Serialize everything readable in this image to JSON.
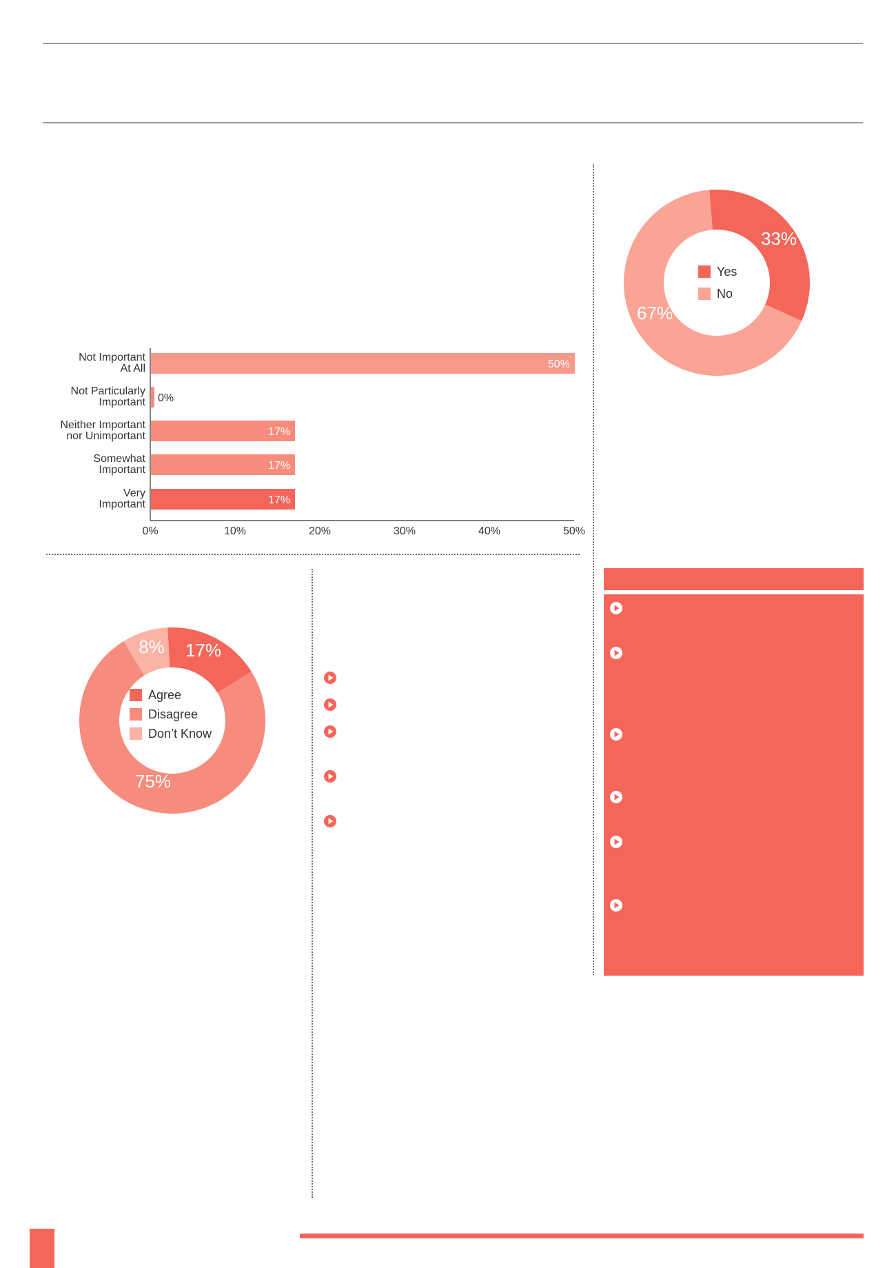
{
  "colors": {
    "accent": "#f4665a",
    "medium": "#f78b7c",
    "light": "#fbb3a6",
    "yes": "#f4665a",
    "no": "#f9a494",
    "bar_top": "#f9998a",
    "rule": "#9a9a9a"
  },
  "chart_data": [
    {
      "type": "bar",
      "orientation": "horizontal",
      "categories": [
        [
          "Not Important",
          "At All"
        ],
        [
          "Not Particularly",
          "Important"
        ],
        [
          "Neither Important",
          "nor Unimportant"
        ],
        [
          "Somewhat",
          "Important"
        ],
        [
          "Very",
          "Important"
        ]
      ],
      "values": [
        50,
        0,
        17,
        17,
        17
      ],
      "data_labels": [
        "50%",
        "0%",
        "17%",
        "17%",
        "17%"
      ],
      "xlim": [
        0,
        50
      ],
      "xticks": [
        "0%",
        "10%",
        "20%",
        "30%",
        "40%",
        "50%"
      ],
      "title": "",
      "xlabel": "",
      "ylabel": ""
    },
    {
      "type": "pie",
      "variant": "donut",
      "categories": [
        "Yes",
        "No"
      ],
      "values": [
        33,
        67
      ],
      "data_labels": [
        "33%",
        "67%"
      ],
      "legend": "center",
      "title": ""
    },
    {
      "type": "pie",
      "variant": "donut",
      "categories": [
        "Agree",
        "Disagree",
        "Don’t Know"
      ],
      "values": [
        17,
        75,
        8
      ],
      "data_labels": [
        "17%",
        "75%",
        "8%"
      ],
      "legend": "center",
      "title": ""
    }
  ],
  "icons": {
    "bullet": "play-circle-icon"
  }
}
